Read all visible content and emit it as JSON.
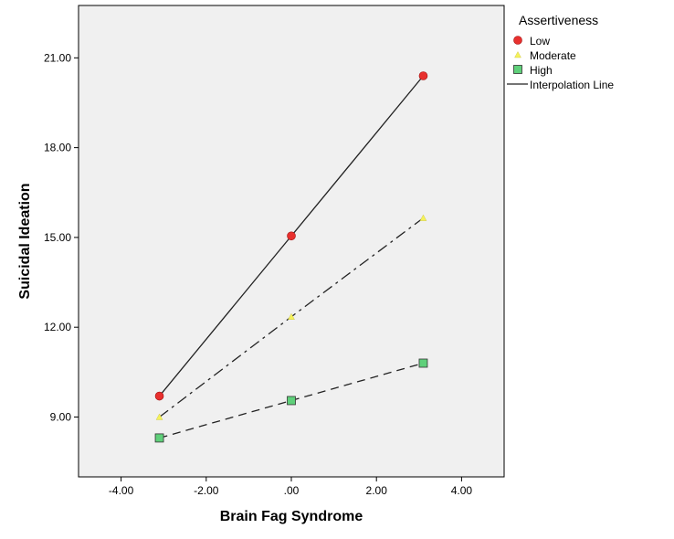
{
  "chart_data": {
    "type": "line",
    "title": "",
    "xlabel": "Brain Fag Syndrome",
    "ylabel": "Suicidal Ideation",
    "xlim": [
      -5.0,
      5.0
    ],
    "ylim": [
      7.0,
      22.75
    ],
    "x_ticks": [
      -4,
      -2,
      0,
      2,
      4
    ],
    "x_tick_labels": [
      "-4.00",
      "-2.00",
      ".00",
      "2.00",
      "4.00"
    ],
    "y_ticks": [
      9,
      12,
      15,
      18,
      21
    ],
    "y_tick_labels": [
      "9.00",
      "12.00",
      "15.00",
      "18.00",
      "21.00"
    ],
    "grid": false,
    "background": "#f0f0f0",
    "legend": {
      "title": "Assertiveness",
      "placement": "right",
      "interpolation_label": "Interpolation Line"
    },
    "series": [
      {
        "name": "Low",
        "marker": "circle",
        "color": "#e8302e",
        "line_dash": "solid",
        "x": [
          -3.1,
          0.0,
          3.1
        ],
        "y": [
          9.7,
          15.05,
          20.4
        ]
      },
      {
        "name": "Moderate",
        "marker": "triangle",
        "color": "#f5f25a",
        "line_dash": "dashdot",
        "x": [
          -3.1,
          0.0,
          3.1
        ],
        "y": [
          9.0,
          12.35,
          15.65
        ]
      },
      {
        "name": "High",
        "marker": "square",
        "color": "#5fd07a",
        "line_dash": "dashed",
        "x": [
          -3.1,
          0.0,
          3.1
        ],
        "y": [
          8.3,
          9.55,
          10.8
        ]
      }
    ]
  }
}
